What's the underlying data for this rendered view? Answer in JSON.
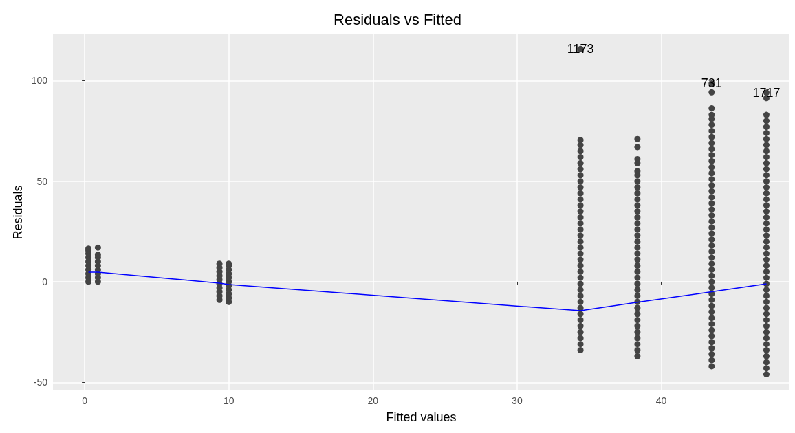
{
  "chart_data": {
    "type": "scatter",
    "title": "Residuals vs Fitted",
    "xlabel": "Fitted values",
    "ylabel": "Residuals",
    "xlim": [
      -2.2,
      48.9
    ],
    "ylim": [
      -54,
      123
    ],
    "xticks": [
      0,
      10,
      20,
      30,
      40
    ],
    "yticks": [
      -50,
      0,
      50,
      100
    ],
    "grid": true,
    "marker": "circle",
    "series": [
      {
        "color": "#444444",
        "x": [
          0.26,
          0.26,
          0.26,
          0.26,
          0.26,
          0.26,
          0.26,
          0.26,
          0.26,
          0.26
        ],
        "values": [
          0,
          2,
          4,
          6,
          8,
          10,
          12,
          14,
          15.5,
          16.5
        ]
      },
      {
        "color": "#444444",
        "x": [
          0.92,
          0.92,
          0.92,
          0.92,
          0.92,
          0.92,
          0.92,
          0.92,
          0.92
        ],
        "values": [
          0,
          2,
          4,
          6,
          8,
          10,
          12,
          13.5,
          17
        ]
      },
      {
        "color": "#444444",
        "x": [
          9.35,
          9.35,
          9.35,
          9.35,
          9.35,
          9.35,
          9.35,
          9.35,
          9.35,
          9.35
        ],
        "values": [
          -9,
          -7,
          -5,
          -3,
          -1,
          1,
          3,
          5,
          7,
          9
        ]
      },
      {
        "color": "#444444",
        "x": [
          10,
          10,
          10,
          10,
          10,
          10,
          10,
          10,
          10,
          10,
          10
        ],
        "values": [
          -10,
          -8,
          -6,
          -4,
          -2,
          0,
          2,
          4,
          6,
          8,
          9
        ]
      },
      {
        "color": "#444444",
        "x": [
          34.4,
          34.4,
          34.4,
          34.4,
          34.4,
          34.4,
          34.4,
          34.4,
          34.4,
          34.4,
          34.4,
          34.4,
          34.4,
          34.4,
          34.4,
          34.4,
          34.4,
          34.4,
          34.4,
          34.4,
          34.4,
          34.4,
          34.4,
          34.4,
          34.4,
          34.4,
          34.4,
          34.4,
          34.4,
          34.4,
          34.4,
          34.4,
          34.4,
          34.4,
          34.4,
          34.4,
          34.4
        ],
        "values": [
          -34,
          -31,
          -28,
          -25,
          -22,
          -19,
          -16,
          -13,
          -10,
          -7,
          -4,
          -1,
          2,
          5,
          8,
          11,
          14,
          17,
          20,
          23,
          26,
          29,
          32,
          35,
          38,
          41,
          44,
          47,
          50,
          53,
          56,
          59,
          62,
          65,
          68,
          70.5,
          115.7
        ]
      },
      {
        "color": "#444444",
        "x": [
          38.35,
          38.35,
          38.35,
          38.35,
          38.35,
          38.35,
          38.35,
          38.35,
          38.35,
          38.35,
          38.35,
          38.35,
          38.35,
          38.35,
          38.35,
          38.35,
          38.35,
          38.35,
          38.35,
          38.35,
          38.35,
          38.35,
          38.35,
          38.35,
          38.35,
          38.35,
          38.35,
          38.35,
          38.35,
          38.35,
          38.35,
          38.35,
          38.35,
          38.35,
          38.35,
          38.35
        ],
        "values": [
          -37,
          -34,
          -31,
          -28,
          -25,
          -22,
          -19,
          -16,
          -13,
          -10,
          -7,
          -4,
          -1,
          2,
          5,
          8,
          11,
          14,
          17,
          20,
          23,
          26,
          29,
          32,
          35,
          38,
          41,
          44,
          47,
          50,
          53,
          55,
          59,
          61,
          67,
          71
        ]
      },
      {
        "color": "#444444",
        "x": [
          43.5,
          43.5,
          43.5,
          43.5,
          43.5,
          43.5,
          43.5,
          43.5,
          43.5,
          43.5,
          43.5,
          43.5,
          43.5,
          43.5,
          43.5,
          43.5,
          43.5,
          43.5,
          43.5,
          43.5,
          43.5,
          43.5,
          43.5,
          43.5,
          43.5,
          43.5,
          43.5,
          43.5,
          43.5,
          43.5,
          43.5,
          43.5,
          43.5,
          43.5,
          43.5,
          43.5,
          43.5,
          43.5,
          43.5,
          43.5,
          43.5,
          43.5,
          43.5,
          43.5,
          43.5,
          43.5
        ],
        "values": [
          -42,
          -39,
          -36,
          -33,
          -30,
          -27,
          -24,
          -21,
          -18,
          -15,
          -12,
          -9,
          -6,
          -3,
          0,
          3,
          6,
          9,
          12,
          15,
          18,
          21,
          24,
          27,
          30,
          33,
          36,
          39,
          42,
          45,
          48,
          51,
          54,
          57,
          60,
          63,
          66,
          69,
          72,
          75,
          78,
          81,
          83,
          86.3,
          94.2,
          98.6
        ]
      },
      {
        "color": "#444444",
        "x": [
          47.3,
          47.3,
          47.3,
          47.3,
          47.3,
          47.3,
          47.3,
          47.3,
          47.3,
          47.3,
          47.3,
          47.3,
          47.3,
          47.3,
          47.3,
          47.3,
          47.3,
          47.3,
          47.3,
          47.3,
          47.3,
          47.3,
          47.3,
          47.3,
          47.3,
          47.3,
          47.3,
          47.3,
          47.3,
          47.3,
          47.3,
          47.3,
          47.3,
          47.3,
          47.3,
          47.3,
          47.3,
          47.3,
          47.3,
          47.3,
          47.3,
          47.3,
          47.3,
          47.3,
          47.3,
          47.3
        ],
        "values": [
          -46,
          -43,
          -40,
          -37,
          -34,
          -31,
          -28,
          -25,
          -22,
          -19,
          -16,
          -13,
          -10,
          -7,
          -4,
          -1,
          2,
          5,
          8,
          11,
          14,
          17,
          20,
          23,
          26,
          29,
          32,
          35,
          38,
          41,
          44,
          47,
          50,
          53,
          56,
          59,
          62,
          65,
          68,
          71,
          74,
          77,
          80,
          83,
          91.3,
          94
        ]
      },
      {
        "type": "line",
        "color": "#0000ff",
        "marker": "none",
        "x": [
          0.26,
          0.92,
          9.35,
          10,
          34.4,
          38.35,
          43.5,
          47.3
        ],
        "values": [
          4.8,
          4.8,
          -0.7,
          -1.4,
          -14.4,
          -10.2,
          -5,
          -1
        ]
      }
    ],
    "ref_lines": [
      {
        "axis": "y",
        "value": 0,
        "color": "#808080",
        "line_style": "dashed"
      }
    ],
    "annotations": [
      {
        "text": "1173",
        "x": 34.4,
        "y": 115.7
      },
      {
        "text": "731",
        "x": 43.5,
        "y": 98.6
      },
      {
        "text": "1717",
        "x": 47.3,
        "y": 94
      }
    ]
  }
}
